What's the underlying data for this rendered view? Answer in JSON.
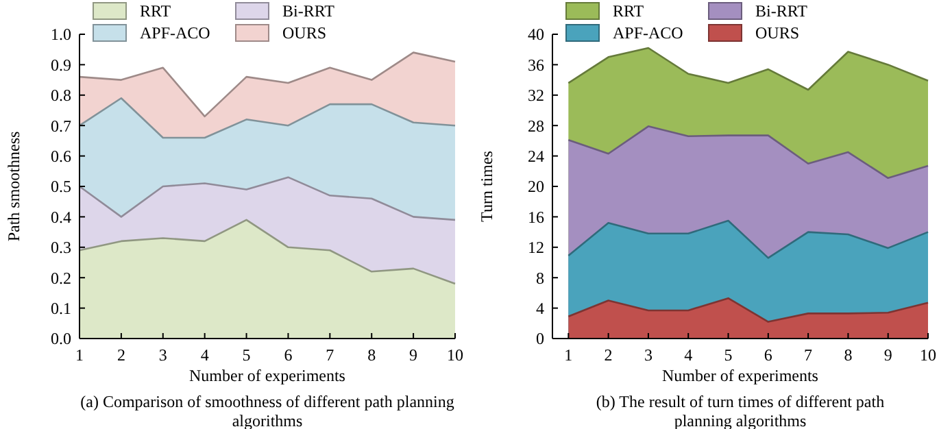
{
  "chart_data": [
    {
      "type": "area",
      "title": "(a) Comparison of smoothness of different path planning algorithms",
      "xlabel": "Number of experiments",
      "ylabel": "Path smoothness",
      "x": [
        1,
        2,
        3,
        4,
        5,
        6,
        7,
        8,
        9,
        10
      ],
      "xlim": [
        1,
        10
      ],
      "xticks": [
        1,
        2,
        3,
        4,
        5,
        6,
        7,
        8,
        9,
        10
      ],
      "ylim": [
        0,
        1
      ],
      "yticks": [
        {
          "value": 0,
          "label": "0.0"
        },
        0.1,
        0.2,
        0.3,
        0.4,
        0.5,
        0.6,
        0.7,
        0.8,
        0.9,
        {
          "value": 1,
          "label": "1.0"
        }
      ],
      "legend": "top",
      "grid": false,
      "series": [
        {
          "name": "RRT",
          "color": "#dde8c8",
          "values": [
            0.29,
            0.32,
            0.33,
            0.32,
            0.39,
            0.3,
            0.29,
            0.22,
            0.23,
            0.18
          ]
        },
        {
          "name": "Bi-RRT",
          "color": "#ddd6ea",
          "values": [
            0.5,
            0.4,
            0.5,
            0.51,
            0.49,
            0.53,
            0.47,
            0.46,
            0.4,
            0.39
          ]
        },
        {
          "name": "APF-ACO",
          "color": "#c6e0ea",
          "values": [
            0.7,
            0.79,
            0.66,
            0.66,
            0.72,
            0.7,
            0.77,
            0.77,
            0.71,
            0.7
          ]
        },
        {
          "name": "OURS",
          "color": "#f2d3d0",
          "values": [
            0.86,
            0.85,
            0.89,
            0.73,
            0.86,
            0.84,
            0.89,
            0.85,
            0.94,
            0.91
          ]
        }
      ]
    },
    {
      "type": "area",
      "title": "(b) The result of turn times of different path planning algorithms",
      "xlabel": "Number of experiments",
      "ylabel": "Turn times",
      "x": [
        1,
        2,
        3,
        4,
        5,
        6,
        7,
        8,
        9,
        10
      ],
      "xlim": [
        0.6,
        10
      ],
      "xticks": [
        1,
        2,
        3,
        4,
        5,
        6,
        7,
        8,
        9,
        10
      ],
      "ylim": [
        0,
        40
      ],
      "yticks": [
        0,
        4,
        8,
        12,
        16,
        20,
        24,
        28,
        32,
        36,
        40
      ],
      "legend": "top",
      "grid": false,
      "series": [
        {
          "name": "RRT",
          "color": "#9bbb59",
          "values": [
            33.6,
            37,
            38.2,
            34.8,
            33.6,
            35.4,
            32.7,
            37.7,
            36,
            33.9
          ]
        },
        {
          "name": "Bi-RRT",
          "color": "#a48fc0",
          "values": [
            26.1,
            24.3,
            27.9,
            26.6,
            26.7,
            26.7,
            23,
            24.5,
            21.1,
            22.7
          ]
        },
        {
          "name": "APF-ACO",
          "color": "#4aa3bc",
          "values": [
            10.9,
            15.2,
            13.8,
            13.8,
            15.5,
            10.6,
            14,
            13.7,
            11.9,
            14
          ]
        },
        {
          "name": "OURS",
          "color": "#c0504d",
          "values": [
            2.9,
            5,
            3.7,
            3.7,
            5.3,
            2.2,
            3.3,
            3.3,
            3.4,
            4.7
          ]
        }
      ]
    }
  ]
}
